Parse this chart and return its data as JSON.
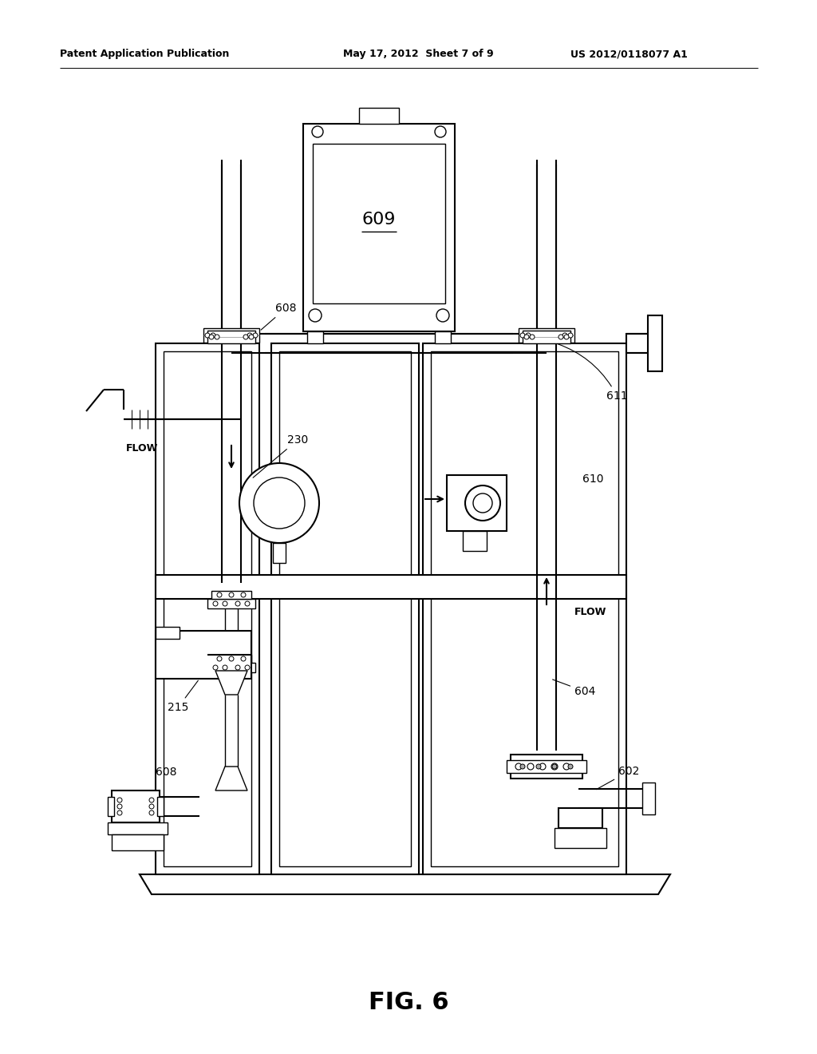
{
  "background_color": "#ffffff",
  "header_left": "Patent Application Publication",
  "header_mid": "May 17, 2012  Sheet 7 of 9",
  "header_right": "US 2012/0118077 A1",
  "figure_label": "FIG. 6"
}
